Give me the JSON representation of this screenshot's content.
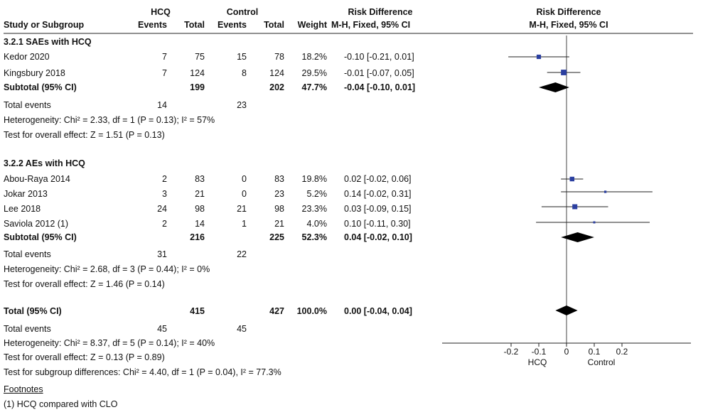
{
  "header": {
    "group1": "HCQ",
    "group2": "Control",
    "effect_title": "Risk Difference",
    "plot_title": "Risk Difference",
    "col_study": "Study or Subgroup",
    "col_events1": "Events",
    "col_total1": "Total",
    "col_events2": "Events",
    "col_total2": "Total",
    "col_weight": "Weight",
    "col_method": "M-H, Fixed, 95% CI",
    "plot_method": "M-H, Fixed, 95% CI"
  },
  "subgroups": [
    {
      "title": "3.2.1 SAEs with HCQ",
      "studies": [
        {
          "name": "Kedor 2020",
          "e1": "7",
          "n1": "75",
          "e2": "15",
          "n2": "78",
          "weight": "18.2%",
          "ci": "-0.10 [-0.21, 0.01]"
        },
        {
          "name": "Kingsbury 2018",
          "e1": "7",
          "n1": "124",
          "e2": "8",
          "n2": "124",
          "weight": "29.5%",
          "ci": "-0.01 [-0.07, 0.05]"
        }
      ],
      "subtotal": {
        "label": "Subtotal (95% CI)",
        "n1": "199",
        "n2": "202",
        "weight": "47.7%",
        "ci": "-0.04 [-0.10, 0.01]"
      },
      "total_events": {
        "label": "Total events",
        "e1": "14",
        "e2": "23"
      },
      "heterogeneity": "Heterogeneity: Chi² = 2.33, df = 1 (P = 0.13); I² = 57%",
      "overall": "Test for overall effect: Z = 1.51 (P = 0.13)"
    },
    {
      "title": "3.2.2 AEs with HCQ",
      "studies": [
        {
          "name": "Abou-Raya 2014",
          "e1": "2",
          "n1": "83",
          "e2": "0",
          "n2": "83",
          "weight": "19.8%",
          "ci": "0.02 [-0.02, 0.06]"
        },
        {
          "name": "Jokar 2013",
          "e1": "3",
          "n1": "21",
          "e2": "0",
          "n2": "23",
          "weight": "5.2%",
          "ci": "0.14 [-0.02, 0.31]"
        },
        {
          "name": "Lee 2018",
          "e1": "24",
          "n1": "98",
          "e2": "21",
          "n2": "98",
          "weight": "23.3%",
          "ci": "0.03 [-0.09, 0.15]"
        },
        {
          "name": "Saviola 2012 (1)",
          "e1": "2",
          "n1": "14",
          "e2": "1",
          "n2": "21",
          "weight": "4.0%",
          "ci": "0.10 [-0.11, 0.30]"
        }
      ],
      "subtotal": {
        "label": "Subtotal (95% CI)",
        "n1": "216",
        "n2": "225",
        "weight": "52.3%",
        "ci": "0.04 [-0.02, 0.10]"
      },
      "total_events": {
        "label": "Total events",
        "e1": "31",
        "e2": "22"
      },
      "heterogeneity": "Heterogeneity: Chi² = 2.68, df = 3 (P = 0.44); I² = 0%",
      "overall": "Test for overall effect: Z = 1.46 (P = 0.14)"
    }
  ],
  "total": {
    "label": "Total (95% CI)",
    "n1": "415",
    "n2": "427",
    "weight": "100.0%",
    "ci": "0.00 [-0.04, 0.04]",
    "events_label": "Total events",
    "e1": "45",
    "e2": "45",
    "heterogeneity": "Heterogeneity: Chi² = 8.37, df = 5 (P = 0.14); I² = 40%",
    "overall": "Test for overall effect: Z = 0.13 (P = 0.89)",
    "subgroup_diff": "Test for subgroup differences: Chi² = 4.40, df = 1 (P = 0.04), I² = 77.3%"
  },
  "footnotes": {
    "title": "Footnotes",
    "items": [
      "(1) HCQ compared with CLO"
    ]
  },
  "chart_data": {
    "type": "forest",
    "xlim": [
      -0.2,
      0.2
    ],
    "ticks": [
      "-0.2",
      "-0.1",
      "0",
      "0.1",
      "0.2"
    ],
    "tick_values": [
      -0.2,
      -0.1,
      0,
      0.1,
      0.2
    ],
    "favours_left": "HCQ",
    "favours_right": "Control",
    "square_color": "#2b3fa0",
    "studies": [
      {
        "name": "Kedor 2020",
        "est": -0.1,
        "lo": -0.21,
        "hi": 0.01,
        "weight": 18.2
      },
      {
        "name": "Kingsbury 2018",
        "est": -0.01,
        "lo": -0.07,
        "hi": 0.05,
        "weight": 29.5
      },
      {
        "name": "Abou-Raya 2014",
        "est": 0.02,
        "lo": -0.02,
        "hi": 0.06,
        "weight": 19.8
      },
      {
        "name": "Jokar 2013",
        "est": 0.14,
        "lo": -0.02,
        "hi": 0.31,
        "weight": 5.2
      },
      {
        "name": "Lee 2018",
        "est": 0.03,
        "lo": -0.09,
        "hi": 0.15,
        "weight": 23.3
      },
      {
        "name": "Saviola 2012 (1)",
        "est": 0.1,
        "lo": -0.11,
        "hi": 0.3,
        "weight": 4.0
      }
    ],
    "pooled": [
      {
        "name": "Subtotal 3.2.1",
        "est": -0.04,
        "lo": -0.1,
        "hi": 0.01
      },
      {
        "name": "Subtotal 3.2.2",
        "est": 0.04,
        "lo": -0.02,
        "hi": 0.1
      },
      {
        "name": "Total",
        "est": 0.0,
        "lo": -0.04,
        "hi": 0.04
      }
    ]
  }
}
